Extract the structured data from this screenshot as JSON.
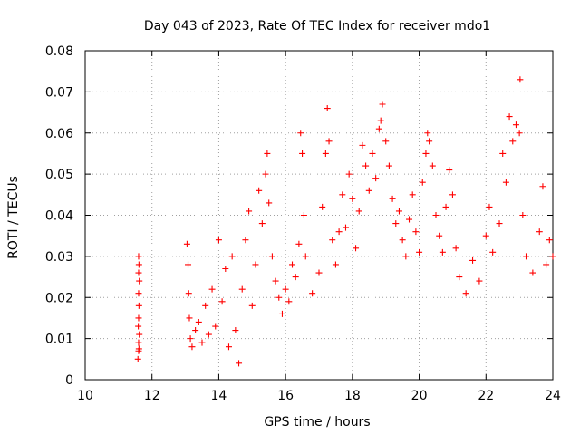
{
  "chart_data": {
    "type": "scatter",
    "title": "Day 043 of 2023, Rate Of TEC Index for receiver mdo1",
    "xlabel": "GPS time / hours",
    "ylabel": "ROTI / TECUs",
    "xlim": [
      10,
      24
    ],
    "ylim": [
      0,
      0.08
    ],
    "x_ticks": [
      10,
      12,
      14,
      16,
      18,
      20,
      22,
      24
    ],
    "x_tick_labels": [
      "10",
      "12",
      "14",
      "16",
      "18",
      "20",
      "22",
      "24"
    ],
    "y_ticks": [
      0,
      0.01,
      0.02,
      0.03,
      0.04,
      0.05,
      0.06,
      0.07,
      0.08
    ],
    "y_tick_labels": [
      "0",
      "0.01",
      "0.02",
      "0.03",
      "0.04",
      "0.05",
      "0.06",
      "0.07",
      "0.08"
    ],
    "grid": true,
    "marker": "+",
    "color": "#ff0000",
    "series": [
      {
        "values": [
          [
            11.58,
            0.005
          ],
          [
            11.6,
            0.007
          ],
          [
            11.61,
            0.0075
          ],
          [
            11.6,
            0.009
          ],
          [
            11.62,
            0.011
          ],
          [
            11.59,
            0.013
          ],
          [
            11.6,
            0.015
          ],
          [
            11.61,
            0.018
          ],
          [
            11.6,
            0.021
          ],
          [
            11.62,
            0.024
          ],
          [
            11.6,
            0.026
          ],
          [
            11.61,
            0.028
          ],
          [
            11.6,
            0.03
          ],
          [
            13.05,
            0.033
          ],
          [
            13.08,
            0.028
          ],
          [
            13.1,
            0.021
          ],
          [
            13.12,
            0.015
          ],
          [
            13.15,
            0.01
          ],
          [
            13.2,
            0.008
          ],
          [
            13.3,
            0.012
          ],
          [
            13.4,
            0.014
          ],
          [
            13.5,
            0.009
          ],
          [
            13.6,
            0.018
          ],
          [
            13.7,
            0.011
          ],
          [
            13.8,
            0.022
          ],
          [
            13.9,
            0.013
          ],
          [
            14.0,
            0.034
          ],
          [
            14.1,
            0.019
          ],
          [
            14.2,
            0.027
          ],
          [
            14.3,
            0.008
          ],
          [
            14.4,
            0.03
          ],
          [
            14.5,
            0.012
          ],
          [
            14.6,
            0.004
          ],
          [
            14.7,
            0.022
          ],
          [
            14.8,
            0.034
          ],
          [
            14.9,
            0.041
          ],
          [
            15.0,
            0.018
          ],
          [
            15.1,
            0.028
          ],
          [
            15.2,
            0.046
          ],
          [
            15.3,
            0.038
          ],
          [
            15.4,
            0.05
          ],
          [
            15.45,
            0.055
          ],
          [
            15.5,
            0.043
          ],
          [
            15.6,
            0.03
          ],
          [
            15.7,
            0.024
          ],
          [
            15.8,
            0.02
          ],
          [
            15.9,
            0.016
          ],
          [
            16.0,
            0.022
          ],
          [
            16.1,
            0.019
          ],
          [
            16.2,
            0.028
          ],
          [
            16.3,
            0.025
          ],
          [
            16.4,
            0.033
          ],
          [
            16.45,
            0.06
          ],
          [
            16.5,
            0.055
          ],
          [
            16.55,
            0.04
          ],
          [
            16.6,
            0.03
          ],
          [
            16.8,
            0.021
          ],
          [
            17.0,
            0.026
          ],
          [
            17.1,
            0.042
          ],
          [
            17.2,
            0.055
          ],
          [
            17.25,
            0.066
          ],
          [
            17.3,
            0.058
          ],
          [
            17.4,
            0.034
          ],
          [
            17.5,
            0.028
          ],
          [
            17.6,
            0.036
          ],
          [
            17.7,
            0.045
          ],
          [
            17.8,
            0.037
          ],
          [
            17.9,
            0.05
          ],
          [
            18.0,
            0.044
          ],
          [
            18.1,
            0.032
          ],
          [
            18.2,
            0.041
          ],
          [
            18.3,
            0.057
          ],
          [
            18.4,
            0.052
          ],
          [
            18.5,
            0.046
          ],
          [
            18.6,
            0.055
          ],
          [
            18.7,
            0.049
          ],
          [
            18.8,
            0.061
          ],
          [
            18.85,
            0.063
          ],
          [
            18.9,
            0.067
          ],
          [
            19.0,
            0.058
          ],
          [
            19.1,
            0.052
          ],
          [
            19.2,
            0.044
          ],
          [
            19.3,
            0.038
          ],
          [
            19.4,
            0.041
          ],
          [
            19.5,
            0.034
          ],
          [
            19.6,
            0.03
          ],
          [
            19.7,
            0.039
          ],
          [
            19.8,
            0.045
          ],
          [
            19.9,
            0.036
          ],
          [
            20.0,
            0.031
          ],
          [
            20.1,
            0.048
          ],
          [
            20.2,
            0.055
          ],
          [
            20.25,
            0.06
          ],
          [
            20.3,
            0.058
          ],
          [
            20.4,
            0.052
          ],
          [
            20.5,
            0.04
          ],
          [
            20.6,
            0.035
          ],
          [
            20.7,
            0.031
          ],
          [
            20.8,
            0.042
          ],
          [
            20.9,
            0.051
          ],
          [
            21.0,
            0.045
          ],
          [
            21.1,
            0.032
          ],
          [
            21.2,
            0.025
          ],
          [
            21.4,
            0.021
          ],
          [
            21.6,
            0.029
          ],
          [
            21.8,
            0.024
          ],
          [
            22.0,
            0.035
          ],
          [
            22.1,
            0.042
          ],
          [
            22.2,
            0.031
          ],
          [
            22.4,
            0.038
          ],
          [
            22.5,
            0.055
          ],
          [
            22.6,
            0.048
          ],
          [
            22.7,
            0.064
          ],
          [
            22.8,
            0.058
          ],
          [
            22.9,
            0.062
          ],
          [
            23.0,
            0.06
          ],
          [
            23.02,
            0.073
          ],
          [
            23.1,
            0.04
          ],
          [
            23.2,
            0.03
          ],
          [
            23.4,
            0.026
          ],
          [
            23.6,
            0.036
          ],
          [
            23.7,
            0.047
          ],
          [
            23.8,
            0.028
          ],
          [
            23.9,
            0.034
          ],
          [
            24.0,
            0.03
          ]
        ]
      }
    ]
  }
}
